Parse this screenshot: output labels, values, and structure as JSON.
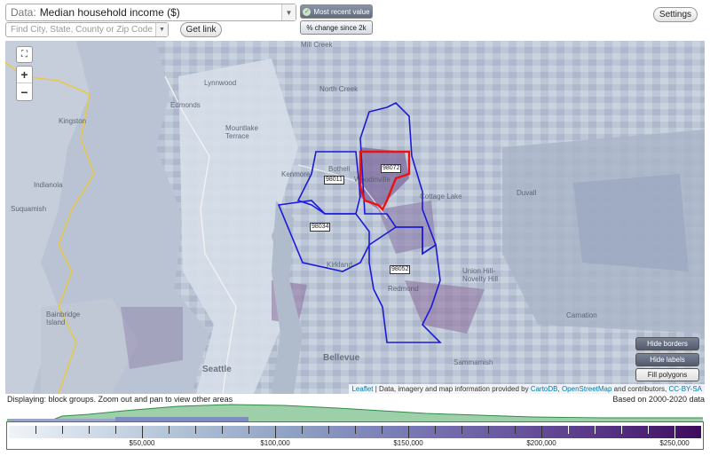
{
  "toolbar": {
    "data_prefix": "Data:",
    "data_value": "Median household income ($)",
    "search_placeholder": "Find City, State, County or Zip Code",
    "get_link": "Get link",
    "settings": "Settings",
    "most_recent": "Most recent value",
    "pct_change": "% change since 2k"
  },
  "map": {
    "zip_labels": [
      "98072",
      "98011",
      "98034",
      "98052"
    ],
    "places": [
      "Mill Creek",
      "Lynnwood",
      "North Creek",
      "Kingston",
      "Edmonds",
      "Mountlake Terrace",
      "Kenmore",
      "Bothell",
      "Woodinville",
      "Indianola",
      "Cottage Lake",
      "Duvall",
      "Suquamish",
      "Kirkland",
      "Redmond",
      "Union Hill-Novelty Hill",
      "Carnation",
      "Bainbridge Island",
      "Seattle",
      "Bellevue",
      "Sammamish"
    ],
    "buttons": {
      "hide_borders": "Hide borders",
      "hide_labels": "Hide labels",
      "fill_polygons": "Fill polygons"
    },
    "attribution_leaflet": "Leaflet",
    "attribution_text": "| Data, imagery and map information provided by",
    "attribution_carto": "CartoDB",
    "attribution_osm": "OpenStreetMap",
    "attribution_tail": "and contributors,",
    "attribution_license": "CC-BY-SA",
    "zoom_in": "+",
    "zoom_out": "−"
  },
  "status": {
    "displaying": "Displaying: block groups. Zoom out and pan to view other areas",
    "based_on": "Based on 2000-2020 data"
  },
  "legend": {
    "labels": [
      "$50,000",
      "$100,000",
      "$150,000",
      "$200,000",
      "$250,000"
    ],
    "label_values": [
      50000,
      100000,
      150000,
      200000,
      250000
    ],
    "range": [
      0,
      260000
    ]
  },
  "colors": {
    "zip_border": "#1a1adb",
    "highlight": "#ee1111",
    "highway": "#e8c84a",
    "water": "#b7c2d2"
  }
}
